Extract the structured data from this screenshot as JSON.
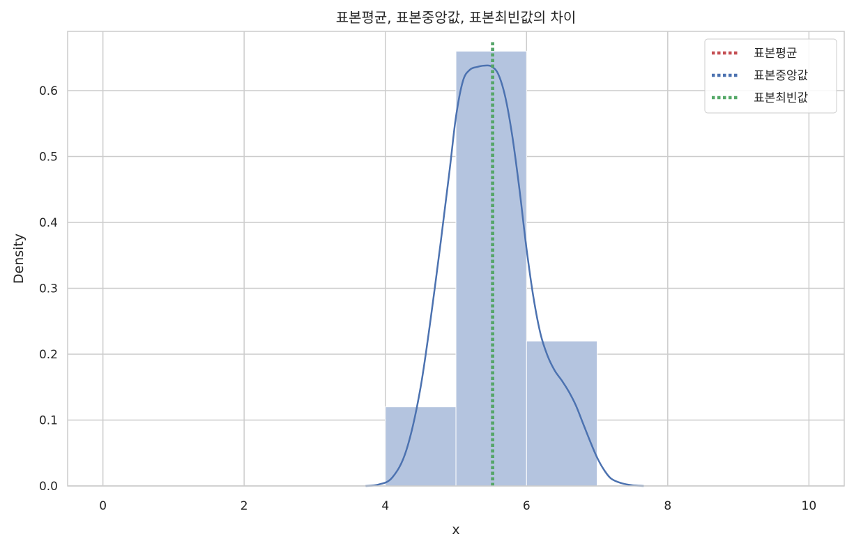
{
  "chart_data": {
    "type": "bar",
    "title": "표본평균, 표본중앙값, 표본최빈값의 차이",
    "xlabel": "x",
    "ylabel": "Density",
    "xlim": [
      -0.5,
      10.5
    ],
    "ylim": [
      0,
      0.69
    ],
    "xticks": [
      "0",
      "2",
      "4",
      "6",
      "8",
      "10"
    ],
    "yticks": [
      "0.0",
      "0.1",
      "0.2",
      "0.3",
      "0.4",
      "0.5",
      "0.6"
    ],
    "grid": true,
    "legend_position": "top-right",
    "histogram": {
      "bin_edges": [
        4,
        5,
        6,
        7
      ],
      "densities": [
        0.12,
        0.66,
        0.22
      ],
      "color": "#b4c4df"
    },
    "kde": {
      "color": "#4c72b0",
      "x": [
        3.72,
        3.9,
        4.1,
        4.3,
        4.5,
        4.7,
        4.9,
        5.0,
        5.1,
        5.2,
        5.3,
        5.4,
        5.5,
        5.6,
        5.7,
        5.8,
        5.9,
        6.0,
        6.1,
        6.2,
        6.3,
        6.4,
        6.5,
        6.6,
        6.7,
        6.8,
        6.9,
        7.0,
        7.1,
        7.2,
        7.35,
        7.5,
        7.66
      ],
      "y": [
        0.0,
        0.002,
        0.013,
        0.055,
        0.15,
        0.3,
        0.47,
        0.56,
        0.615,
        0.632,
        0.636,
        0.638,
        0.637,
        0.625,
        0.59,
        0.53,
        0.45,
        0.36,
        0.285,
        0.23,
        0.197,
        0.175,
        0.16,
        0.143,
        0.122,
        0.095,
        0.068,
        0.043,
        0.024,
        0.011,
        0.004,
        0.001,
        0.0
      ]
    },
    "vlines": [
      {
        "name": "표본평균",
        "x": 5.52,
        "color": "#c44e52"
      },
      {
        "name": "표본중앙값",
        "x": 5.52,
        "color": "#4c72b0"
      },
      {
        "name": "표본최빈값",
        "x": 5.52,
        "color": "#55a868"
      }
    ]
  }
}
